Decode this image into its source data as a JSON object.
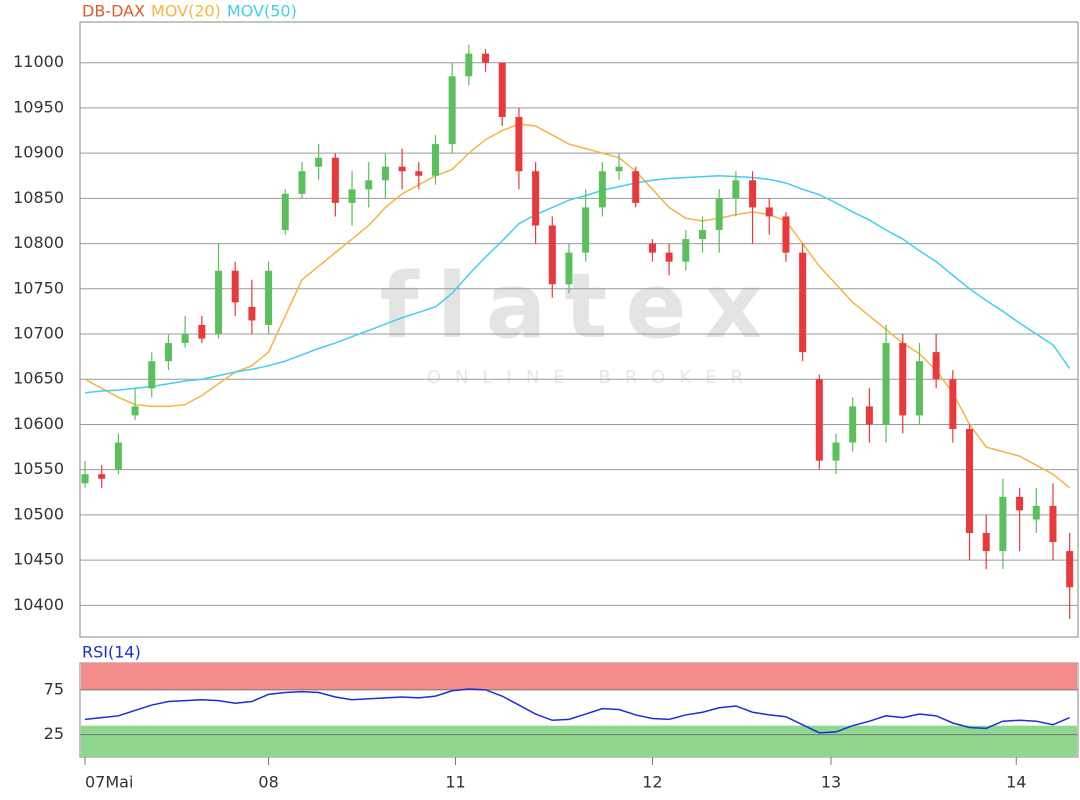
{
  "chart_data": [
    {
      "type": "candlestick",
      "legend": [
        {
          "name": "DB-DAX",
          "color": "#e05a2c"
        },
        {
          "name": "MOV(20)",
          "color": "#f5b53f"
        },
        {
          "name": "MOV(50)",
          "color": "#3fd0ee"
        }
      ],
      "watermark": [
        "flatex",
        "ONLINE BROKER"
      ],
      "up_color": "#5cbf5c",
      "down_color": "#e8393c",
      "open": [
        10535,
        10545,
        10550,
        10610,
        10640,
        10670,
        10690,
        10710,
        10700,
        10770,
        10730,
        10710,
        10815,
        10855,
        10885,
        10895,
        10845,
        10860,
        10870,
        10885,
        10880,
        10875,
        10910,
        10985,
        11010,
        11000,
        10940,
        10880,
        10820,
        10755,
        10790,
        10840,
        10880,
        10880,
        10800,
        10790,
        10780,
        10805,
        10815,
        10850,
        10870,
        10840,
        10830,
        10790,
        10650,
        10560,
        10580,
        10620,
        10600,
        10690,
        10610,
        10680,
        10650,
        10595,
        10480,
        10460,
        10520,
        10495,
        10510,
        10460
      ],
      "high": [
        10560,
        10555,
        10590,
        10640,
        10680,
        10700,
        10720,
        10720,
        10800,
        10780,
        10760,
        10780,
        10860,
        10890,
        10910,
        10900,
        10880,
        10890,
        10900,
        10905,
        10890,
        10920,
        11000,
        11020,
        11015,
        11000,
        10950,
        10890,
        10830,
        10800,
        10860,
        10890,
        10900,
        10885,
        10805,
        10800,
        10815,
        10830,
        10860,
        10880,
        10880,
        10850,
        10835,
        10800,
        10655,
        10590,
        10630,
        10640,
        10710,
        10700,
        10690,
        10700,
        10660,
        10600,
        10500,
        10540,
        10530,
        10530,
        10535,
        10480
      ],
      "low": [
        10530,
        10530,
        10545,
        10605,
        10630,
        10660,
        10685,
        10690,
        10695,
        10720,
        10700,
        10700,
        10810,
        10850,
        10870,
        10830,
        10820,
        10840,
        10850,
        10860,
        10860,
        10865,
        10900,
        10975,
        10990,
        10930,
        10860,
        10800,
        10740,
        10745,
        10780,
        10830,
        10870,
        10840,
        10780,
        10765,
        10770,
        10790,
        10790,
        10830,
        10800,
        10810,
        10780,
        10670,
        10550,
        10545,
        10570,
        10580,
        10580,
        10590,
        10600,
        10640,
        10580,
        10450,
        10440,
        10440,
        10460,
        10480,
        10450,
        10385
      ],
      "close": [
        10545,
        10540,
        10580,
        10620,
        10670,
        10690,
        10700,
        10695,
        10770,
        10735,
        10715,
        10770,
        10855,
        10880,
        10895,
        10845,
        10860,
        10870,
        10885,
        10880,
        10875,
        10910,
        10985,
        11010,
        11000,
        10940,
        10880,
        10820,
        10755,
        10790,
        10840,
        10880,
        10885,
        10845,
        10790,
        10780,
        10805,
        10815,
        10850,
        10870,
        10840,
        10830,
        10790,
        10680,
        10560,
        10580,
        10620,
        10600,
        10690,
        10610,
        10670,
        10650,
        10595,
        10480,
        10460,
        10520,
        10505,
        10510,
        10470,
        10420
      ],
      "series": [
        {
          "name": "MOV(20)",
          "color": "#f5b53f",
          "values": [
            10650,
            10640,
            10630,
            10622,
            10620,
            10620,
            10622,
            10632,
            10645,
            10658,
            10665,
            10680,
            10720,
            10760,
            10775,
            10790,
            10805,
            10820,
            10840,
            10855,
            10865,
            10875,
            10882,
            10900,
            10915,
            10925,
            10932,
            10930,
            10920,
            10910,
            10905,
            10900,
            10895,
            10880,
            10860,
            10840,
            10828,
            10825,
            10828,
            10832,
            10835,
            10832,
            10825,
            10800,
            10775,
            10755,
            10735,
            10720,
            10705,
            10690,
            10678,
            10660,
            10635,
            10600,
            10575,
            10570,
            10565,
            10555,
            10545,
            10530
          ]
        },
        {
          "name": "MOV(50)",
          "color": "#3fd0ee",
          "values": [
            10635,
            10637,
            10638,
            10640,
            10642,
            10645,
            10648,
            10650,
            10654,
            10658,
            10661,
            10665,
            10670,
            10677,
            10684,
            10690,
            10697,
            10704,
            10711,
            10718,
            10724,
            10730,
            10745,
            10766,
            10785,
            10803,
            10822,
            10832,
            10840,
            10848,
            10853,
            10859,
            10863,
            10867,
            10870,
            10872,
            10873,
            10874,
            10875,
            10874,
            10873,
            10871,
            10867,
            10860,
            10854,
            10845,
            10835,
            10826,
            10815,
            10805,
            10792,
            10780,
            10765,
            10750,
            10737,
            10725,
            10712,
            10700,
            10688,
            10662
          ]
        }
      ],
      "xlim": [
        -0.3,
        59.5
      ],
      "ylim": [
        10365,
        11045
      ],
      "yticks": [
        10400,
        10450,
        10500,
        10550,
        10600,
        10650,
        10700,
        10750,
        10800,
        10850,
        10900,
        10950,
        11000
      ],
      "grid": true
    },
    {
      "type": "line",
      "title": "RSI(14)",
      "series": [
        {
          "name": "RSI(14)",
          "color": "#1a2fd6",
          "values": [
            42,
            44,
            46,
            52,
            58,
            62,
            63,
            64,
            63,
            60,
            62,
            70,
            72,
            73,
            72,
            67,
            64,
            65,
            66,
            67,
            66,
            68,
            74,
            76,
            75,
            68,
            58,
            48,
            41,
            42,
            48,
            54,
            53,
            47,
            43,
            42,
            47,
            50,
            55,
            57,
            50,
            47,
            45,
            36,
            27,
            28,
            35,
            40,
            46,
            44,
            48,
            46,
            38,
            33,
            32,
            40,
            41,
            40,
            36,
            44
          ]
        }
      ],
      "zones": [
        {
          "from": 75,
          "to": 105,
          "color": "#f58c8c"
        },
        {
          "from": 0,
          "to": 35,
          "color": "#8fd68f"
        }
      ],
      "xlim": [
        -0.3,
        59.5
      ],
      "ylim": [
        0,
        105
      ],
      "yticks": [
        25,
        75
      ],
      "xticks": [
        {
          "value": 0,
          "label": "07Mai"
        },
        {
          "value": 11,
          "label": "08"
        },
        {
          "value": 22.2,
          "label": "11"
        },
        {
          "value": 34,
          "label": "12"
        },
        {
          "value": 44.7,
          "label": "13"
        },
        {
          "value": 55.8,
          "label": "14"
        }
      ],
      "grid": true
    }
  ]
}
